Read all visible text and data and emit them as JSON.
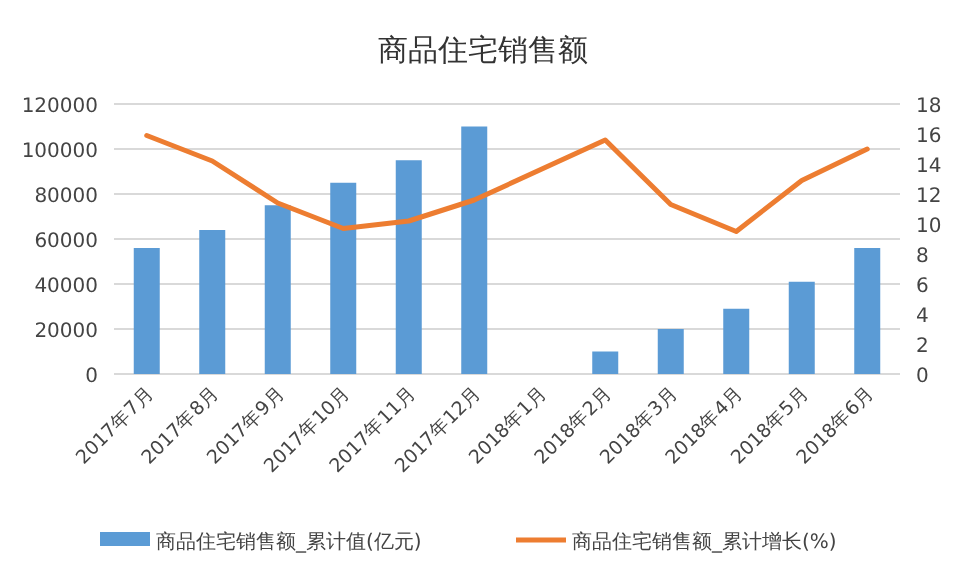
{
  "chart_data": {
    "type": "bar",
    "title": "商品住宅销售额",
    "categories": [
      "2017年7月",
      "2017年8月",
      "2017年9月",
      "2017年10月",
      "2017年11月",
      "2017年12月",
      "2018年1月",
      "2018年2月",
      "2018年3月",
      "2018年4月",
      "2018年5月",
      "2018年6月"
    ],
    "series": [
      {
        "name": "商品住宅销售额_累计值(亿元)",
        "color": "#5b9bd5",
        "values": [
          56000,
          64000,
          75000,
          85000,
          95000,
          110000,
          null,
          10000,
          20000,
          29000,
          41000,
          56000
        ]
      },
      {
        "name": "商品住宅销售额_累计增长(%)",
        "type": "line",
        "axis": "y2",
        "color": "#ed7d31",
        "values": [
          15.9,
          14.2,
          11.4,
          9.7,
          10.2,
          11.6,
          null,
          15.6,
          11.3,
          9.5,
          12.9,
          15.0
        ]
      }
    ],
    "ylim": [
      0,
      120000
    ],
    "yticks": [
      0,
      20000,
      40000,
      60000,
      80000,
      100000,
      120000
    ],
    "y2lim": [
      0,
      18
    ],
    "y2ticks": [
      0,
      2,
      4,
      6,
      8,
      10,
      12,
      14,
      16,
      18
    ],
    "grid": "y",
    "legend": "bottom"
  }
}
